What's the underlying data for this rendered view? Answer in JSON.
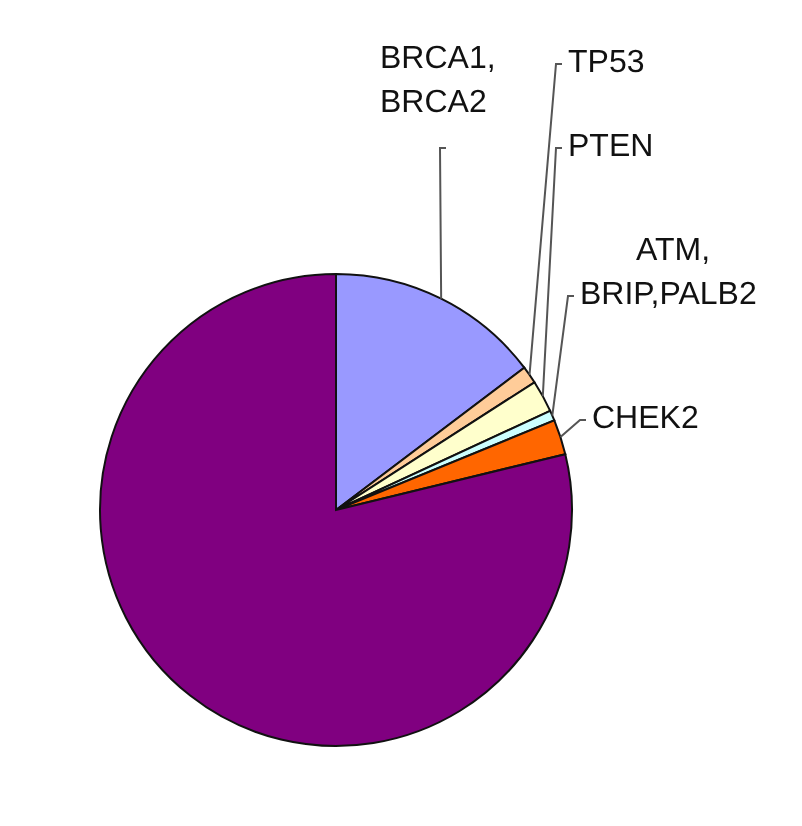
{
  "chart_data": {
    "type": "pie",
    "categories": [
      "BRCA1, BRCA2",
      "TP53",
      "PTEN",
      "ATM, BRIP,PALB2",
      "CHEK2",
      null
    ],
    "values": [
      14.7,
      1.2,
      2.2,
      0.7,
      2.4,
      78.8
    ],
    "colors": [
      "#9999ff",
      "#ffcc99",
      "#ffffcc",
      "#ccffff",
      "#ff6600",
      "#800080"
    ]
  }
}
